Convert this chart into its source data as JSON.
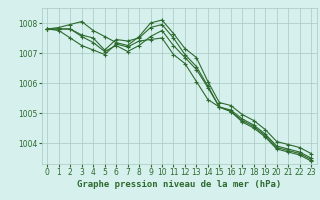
{
  "x": [
    0,
    1,
    2,
    3,
    4,
    5,
    6,
    7,
    8,
    9,
    10,
    11,
    12,
    13,
    14,
    15,
    16,
    17,
    18,
    19,
    20,
    21,
    22,
    23
  ],
  "line1": [
    1007.8,
    1007.85,
    1007.95,
    1008.05,
    1007.75,
    1007.55,
    1007.35,
    1007.25,
    1007.55,
    1008.0,
    1008.1,
    1007.65,
    1007.15,
    1006.85,
    1006.05,
    1005.35,
    1005.25,
    1004.95,
    1004.75,
    1004.45,
    1004.05,
    1003.95,
    1003.85,
    1003.65
  ],
  "line2": [
    1007.8,
    1007.8,
    1007.8,
    1007.55,
    1007.35,
    1007.05,
    1007.25,
    1007.05,
    1007.25,
    1007.55,
    1007.75,
    1007.25,
    1006.85,
    1006.45,
    1005.85,
    1005.2,
    1005.1,
    1004.8,
    1004.6,
    1004.3,
    1003.9,
    1003.8,
    1003.7,
    1003.5
  ],
  "line3": [
    1007.8,
    1007.75,
    1007.5,
    1007.25,
    1007.1,
    1006.95,
    1007.3,
    1007.2,
    1007.4,
    1007.45,
    1007.5,
    1006.95,
    1006.65,
    1006.05,
    1005.45,
    1005.2,
    1005.05,
    1004.75,
    1004.55,
    1004.25,
    1003.85,
    1003.75,
    1003.65,
    1003.45
  ],
  "line4": [
    1007.8,
    1007.8,
    1007.8,
    1007.6,
    1007.5,
    1007.1,
    1007.45,
    1007.4,
    1007.5,
    1007.85,
    1007.95,
    1007.5,
    1006.95,
    1006.55,
    1005.9,
    1005.2,
    1005.05,
    1004.7,
    1004.5,
    1004.2,
    1003.8,
    1003.7,
    1003.6,
    1003.4
  ],
  "bg_color": "#d6f0ee",
  "line_color": "#2d6a2d",
  "grid_color": "#a8c8c0",
  "xlabel": "Graphe pression niveau de la mer (hPa)",
  "ylim": [
    1003.3,
    1008.5
  ],
  "yticks": [
    1004,
    1005,
    1006,
    1007,
    1008
  ],
  "xticks": [
    0,
    1,
    2,
    3,
    4,
    5,
    6,
    7,
    8,
    9,
    10,
    11,
    12,
    13,
    14,
    15,
    16,
    17,
    18,
    19,
    20,
    21,
    22,
    23
  ],
  "xlabel_fontsize": 6.5,
  "tick_fontsize": 5.5,
  "marker_size": 2.5,
  "line_width": 0.8
}
